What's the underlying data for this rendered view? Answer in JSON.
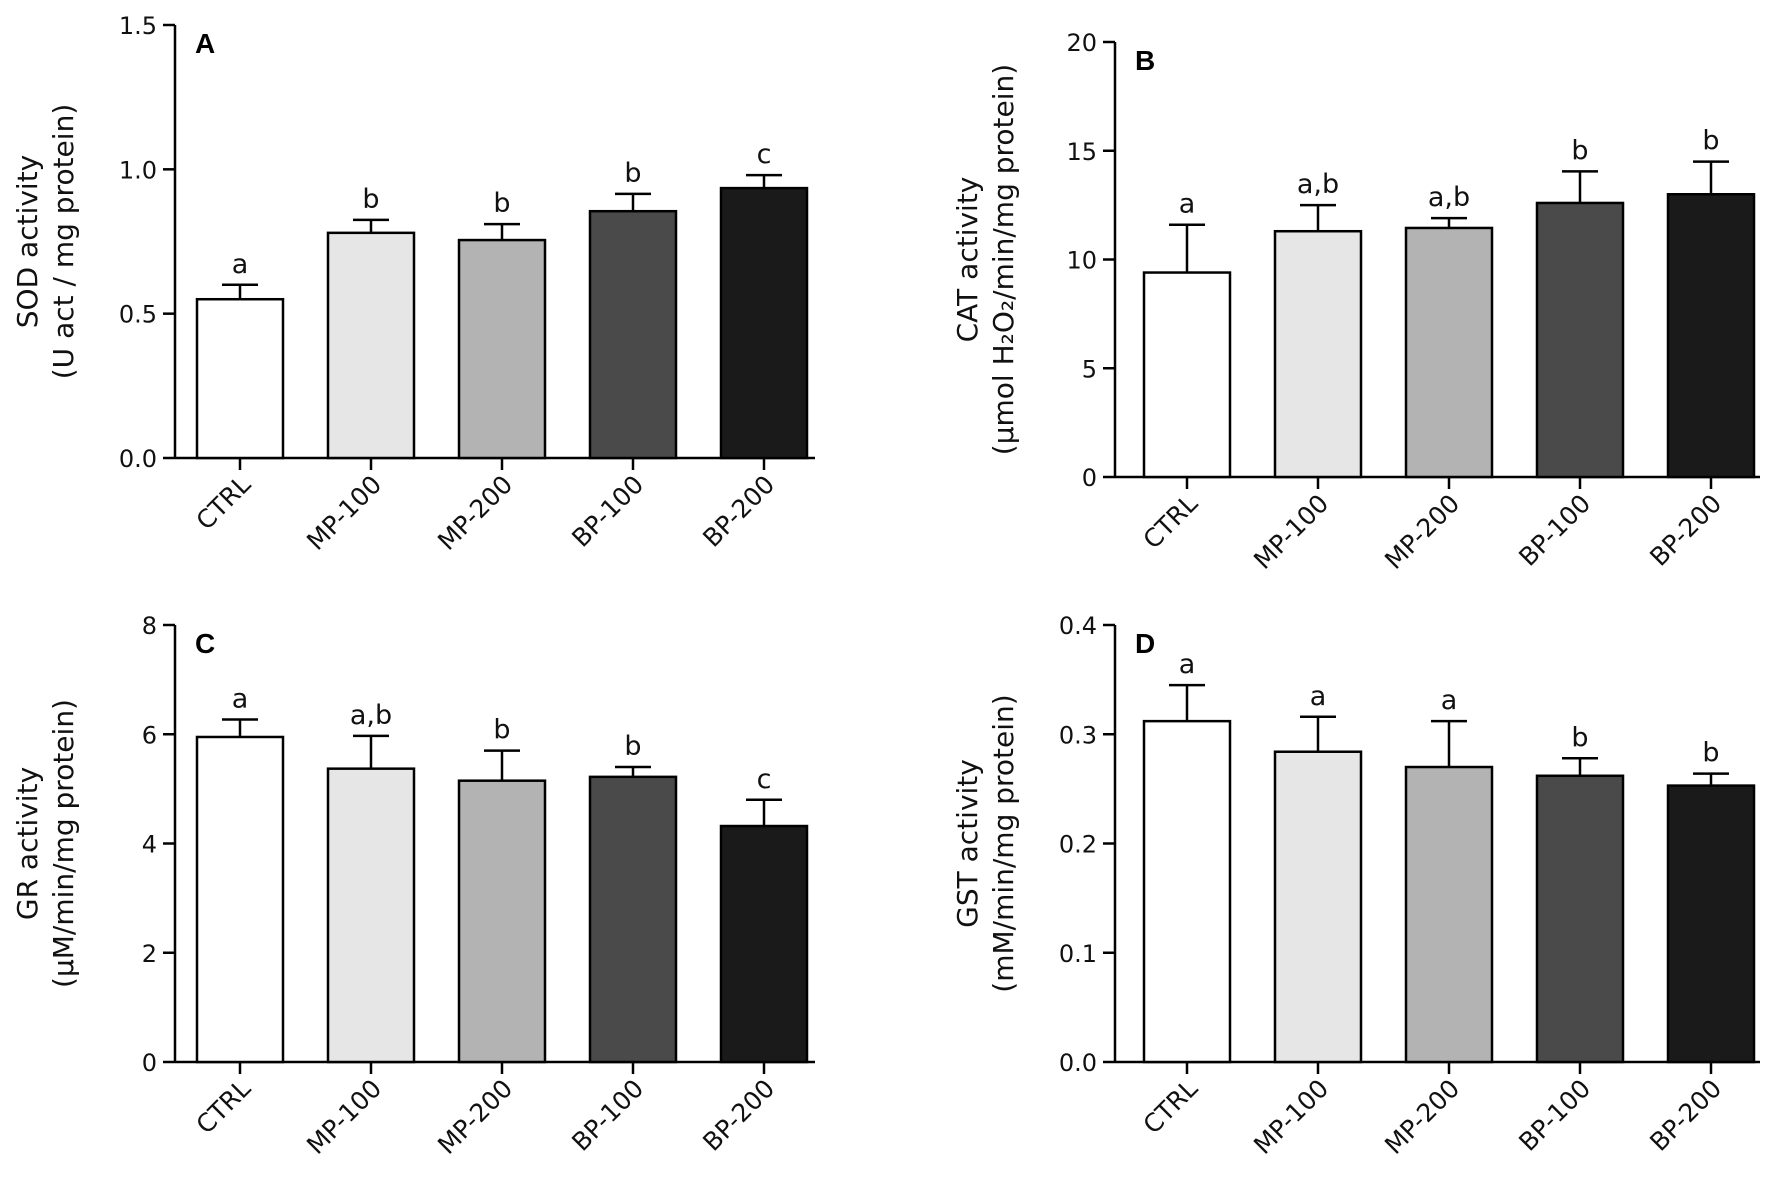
{
  "chart_data": [
    {
      "panel": "A",
      "type": "bar",
      "categories": [
        "CTRL",
        "MP-100",
        "MP-200",
        "BP-100",
        "BP-200"
      ],
      "values": [
        0.55,
        0.78,
        0.755,
        0.855,
        0.935
      ],
      "errors": [
        0.05,
        0.045,
        0.055,
        0.06,
        0.045
      ],
      "significance": [
        "a",
        "b",
        "b",
        "b",
        "c"
      ],
      "ylabel_line1": "SOD activity",
      "ylabel_line2": "(U act / mg protein)",
      "ylim": [
        0,
        1.5
      ],
      "yticks": [
        0,
        0.5,
        1.0,
        1.5
      ],
      "ytick_labels": [
        "0.0",
        "0.5",
        "1.0",
        "1.5"
      ]
    },
    {
      "panel": "B",
      "type": "bar",
      "categories": [
        "CTRL",
        "MP-100",
        "MP-200",
        "BP-100",
        "BP-200"
      ],
      "values": [
        9.4,
        11.3,
        11.45,
        12.6,
        13.0
      ],
      "errors": [
        2.2,
        1.2,
        0.45,
        1.45,
        1.5
      ],
      "significance": [
        "a",
        "a,b",
        "a,b",
        "b",
        "b"
      ],
      "ylabel_line1": "CAT activity",
      "ylabel_line2": "(µmol H₂O₂/min/mg protein)",
      "ylim": [
        0,
        20
      ],
      "yticks": [
        0,
        5,
        10,
        15,
        20
      ],
      "ytick_labels": [
        "0",
        "5",
        "10",
        "15",
        "20"
      ]
    },
    {
      "panel": "C",
      "type": "bar",
      "categories": [
        "CTRL",
        "MP-100",
        "MP-200",
        "BP-100",
        "BP-200"
      ],
      "values": [
        5.95,
        5.37,
        5.15,
        5.22,
        4.32
      ],
      "errors": [
        0.32,
        0.6,
        0.55,
        0.18,
        0.48
      ],
      "significance": [
        "a",
        "a,b",
        "b",
        "b",
        "c"
      ],
      "ylabel_line1": "GR activity",
      "ylabel_line2": "(µM/min/mg protein)",
      "ylim": [
        0,
        8
      ],
      "yticks": [
        0,
        2,
        4,
        6,
        8
      ],
      "ytick_labels": [
        "0",
        "2",
        "4",
        "6",
        "8"
      ]
    },
    {
      "panel": "D",
      "type": "bar",
      "categories": [
        "CTRL",
        "MP-100",
        "MP-200",
        "BP-100",
        "BP-200"
      ],
      "values": [
        0.312,
        0.284,
        0.27,
        0.262,
        0.253
      ],
      "errors": [
        0.033,
        0.032,
        0.042,
        0.016,
        0.011
      ],
      "significance": [
        "a",
        "a",
        "a",
        "b",
        "b"
      ],
      "ylabel_line1": "GST activity",
      "ylabel_line2": "(mM/min/mg protein)",
      "ylim": [
        0,
        0.4
      ],
      "yticks": [
        0,
        0.1,
        0.2,
        0.3,
        0.4
      ],
      "ytick_labels": [
        "0.0",
        "0.1",
        "0.2",
        "0.3",
        "0.4"
      ]
    }
  ],
  "colors": {
    "bar_fills": [
      "#ffffff",
      "#e6e6e6",
      "#b3b3b3",
      "#4a4a4a",
      "#1a1a1a"
    ],
    "stroke": "#000000"
  }
}
